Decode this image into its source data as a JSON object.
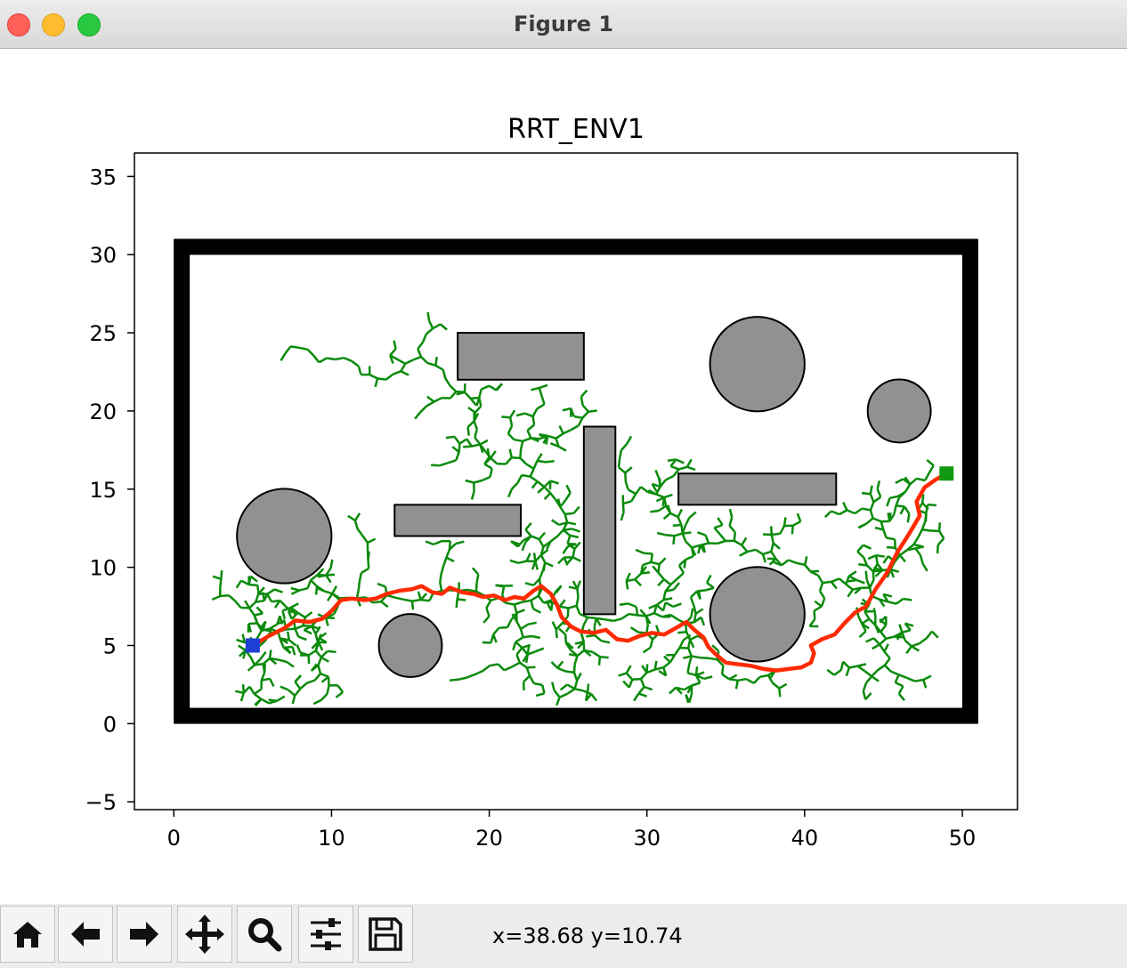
{
  "window": {
    "title": "Figure 1"
  },
  "toolbar": {
    "buttons": [
      {
        "name": "home",
        "icon": "home-icon"
      },
      {
        "name": "back",
        "icon": "arrow-left-icon"
      },
      {
        "name": "forward",
        "icon": "arrow-right-icon"
      },
      {
        "name": "pan",
        "icon": "move-icon"
      },
      {
        "name": "zoom",
        "icon": "magnifier-icon"
      },
      {
        "name": "configure-subplots",
        "icon": "sliders-icon"
      },
      {
        "name": "save",
        "icon": "floppy-disk-icon"
      }
    ],
    "coords": "x=38.68 y=10.74"
  },
  "chart_data": {
    "type": "scatter",
    "title": "RRT_ENV1",
    "xlabel": "",
    "ylabel": "",
    "xlim": [
      -2.5,
      53.5
    ],
    "ylim": [
      -5.5,
      36.5
    ],
    "xticks": [
      "0",
      "10",
      "20",
      "30",
      "40",
      "50"
    ],
    "yticks": [
      "−5",
      "0",
      "5",
      "10",
      "15",
      "20",
      "25",
      "30",
      "35"
    ],
    "xtick_values": [
      0,
      10,
      20,
      30,
      40,
      50
    ],
    "ytick_values": [
      -5,
      0,
      5,
      10,
      15,
      20,
      25,
      30,
      35
    ],
    "boundary": {
      "x0": 0.5,
      "y0": 0.5,
      "x1": 50.5,
      "y1": 30.5,
      "color": "#000000"
    },
    "rect_obstacles": [
      {
        "x": 18,
        "y": 22,
        "w": 8,
        "h": 3
      },
      {
        "x": 26,
        "y": 7,
        "w": 2,
        "h": 12
      },
      {
        "x": 14,
        "y": 12,
        "w": 8,
        "h": 2
      },
      {
        "x": 32,
        "y": 14,
        "w": 10,
        "h": 2
      }
    ],
    "circle_obstacles": [
      {
        "cx": 7,
        "cy": 12,
        "r": 3
      },
      {
        "cx": 15,
        "cy": 5,
        "r": 2
      },
      {
        "cx": 37,
        "cy": 23,
        "r": 3
      },
      {
        "cx": 46,
        "cy": 20,
        "r": 2
      },
      {
        "cx": 37,
        "cy": 7,
        "r": 3
      }
    ],
    "obstacle_color": "#919191",
    "start": {
      "x": 5,
      "y": 5,
      "color": "#1f3fd6"
    },
    "goal": {
      "x": 49,
      "y": 16,
      "color": "#119a11"
    },
    "tree_color": "#0a8a0a",
    "path_color": "#ff2a00",
    "path": [
      [
        5,
        5
      ],
      [
        6,
        5.6
      ],
      [
        7,
        6.1
      ],
      [
        7.7,
        6.6
      ],
      [
        8.6,
        6.5
      ],
      [
        9.4,
        6.7
      ],
      [
        10,
        7.2
      ],
      [
        10.6,
        7.9
      ],
      [
        11.3,
        8
      ],
      [
        12.1,
        7.9
      ],
      [
        12.8,
        8
      ],
      [
        13.5,
        8.3
      ],
      [
        14.3,
        8.5
      ],
      [
        15.1,
        8.6
      ],
      [
        15.7,
        8.8
      ],
      [
        16.4,
        8.4
      ],
      [
        17,
        8.3
      ],
      [
        17.5,
        8.7
      ],
      [
        18.3,
        8.4
      ],
      [
        19,
        8.3
      ],
      [
        19.6,
        8.1
      ],
      [
        20.3,
        8.2
      ],
      [
        21,
        7.9
      ],
      [
        21.6,
        8.1
      ],
      [
        22.2,
        8.0
      ],
      [
        22.8,
        8.5
      ],
      [
        23.3,
        8.8
      ],
      [
        23.9,
        8.3
      ],
      [
        24.3,
        7.6
      ],
      [
        24.6,
        6.8
      ],
      [
        25.2,
        6.2
      ],
      [
        25.8,
        5.9
      ],
      [
        26.6,
        5.8
      ],
      [
        27.4,
        6.0
      ],
      [
        28.1,
        5.4
      ],
      [
        28.8,
        5.3
      ],
      [
        29.5,
        5.6
      ],
      [
        30.3,
        5.8
      ],
      [
        31.1,
        5.7
      ],
      [
        31.8,
        6.1
      ],
      [
        32.5,
        6.5
      ],
      [
        33.0,
        6.0
      ],
      [
        33.6,
        5.5
      ],
      [
        33.9,
        4.9
      ],
      [
        34.4,
        4.4
      ],
      [
        35.0,
        3.9
      ],
      [
        35.8,
        3.8
      ],
      [
        36.6,
        3.7
      ],
      [
        37.4,
        3.5
      ],
      [
        38.2,
        3.4
      ],
      [
        39.0,
        3.5
      ],
      [
        39.8,
        3.6
      ],
      [
        40.4,
        3.9
      ],
      [
        40.6,
        4.5
      ],
      [
        40.4,
        5.0
      ],
      [
        41.1,
        5.4
      ],
      [
        41.9,
        5.7
      ],
      [
        42.6,
        6.5
      ],
      [
        43.2,
        7.1
      ],
      [
        43.9,
        7.5
      ],
      [
        44.5,
        8.6
      ],
      [
        45.2,
        9.6
      ],
      [
        45.9,
        11.0
      ],
      [
        46.6,
        12.1
      ],
      [
        47.3,
        13.3
      ],
      [
        47.1,
        14.2
      ],
      [
        47.6,
        15.1
      ],
      [
        48.3,
        15.6
      ],
      [
        49,
        16
      ]
    ]
  }
}
